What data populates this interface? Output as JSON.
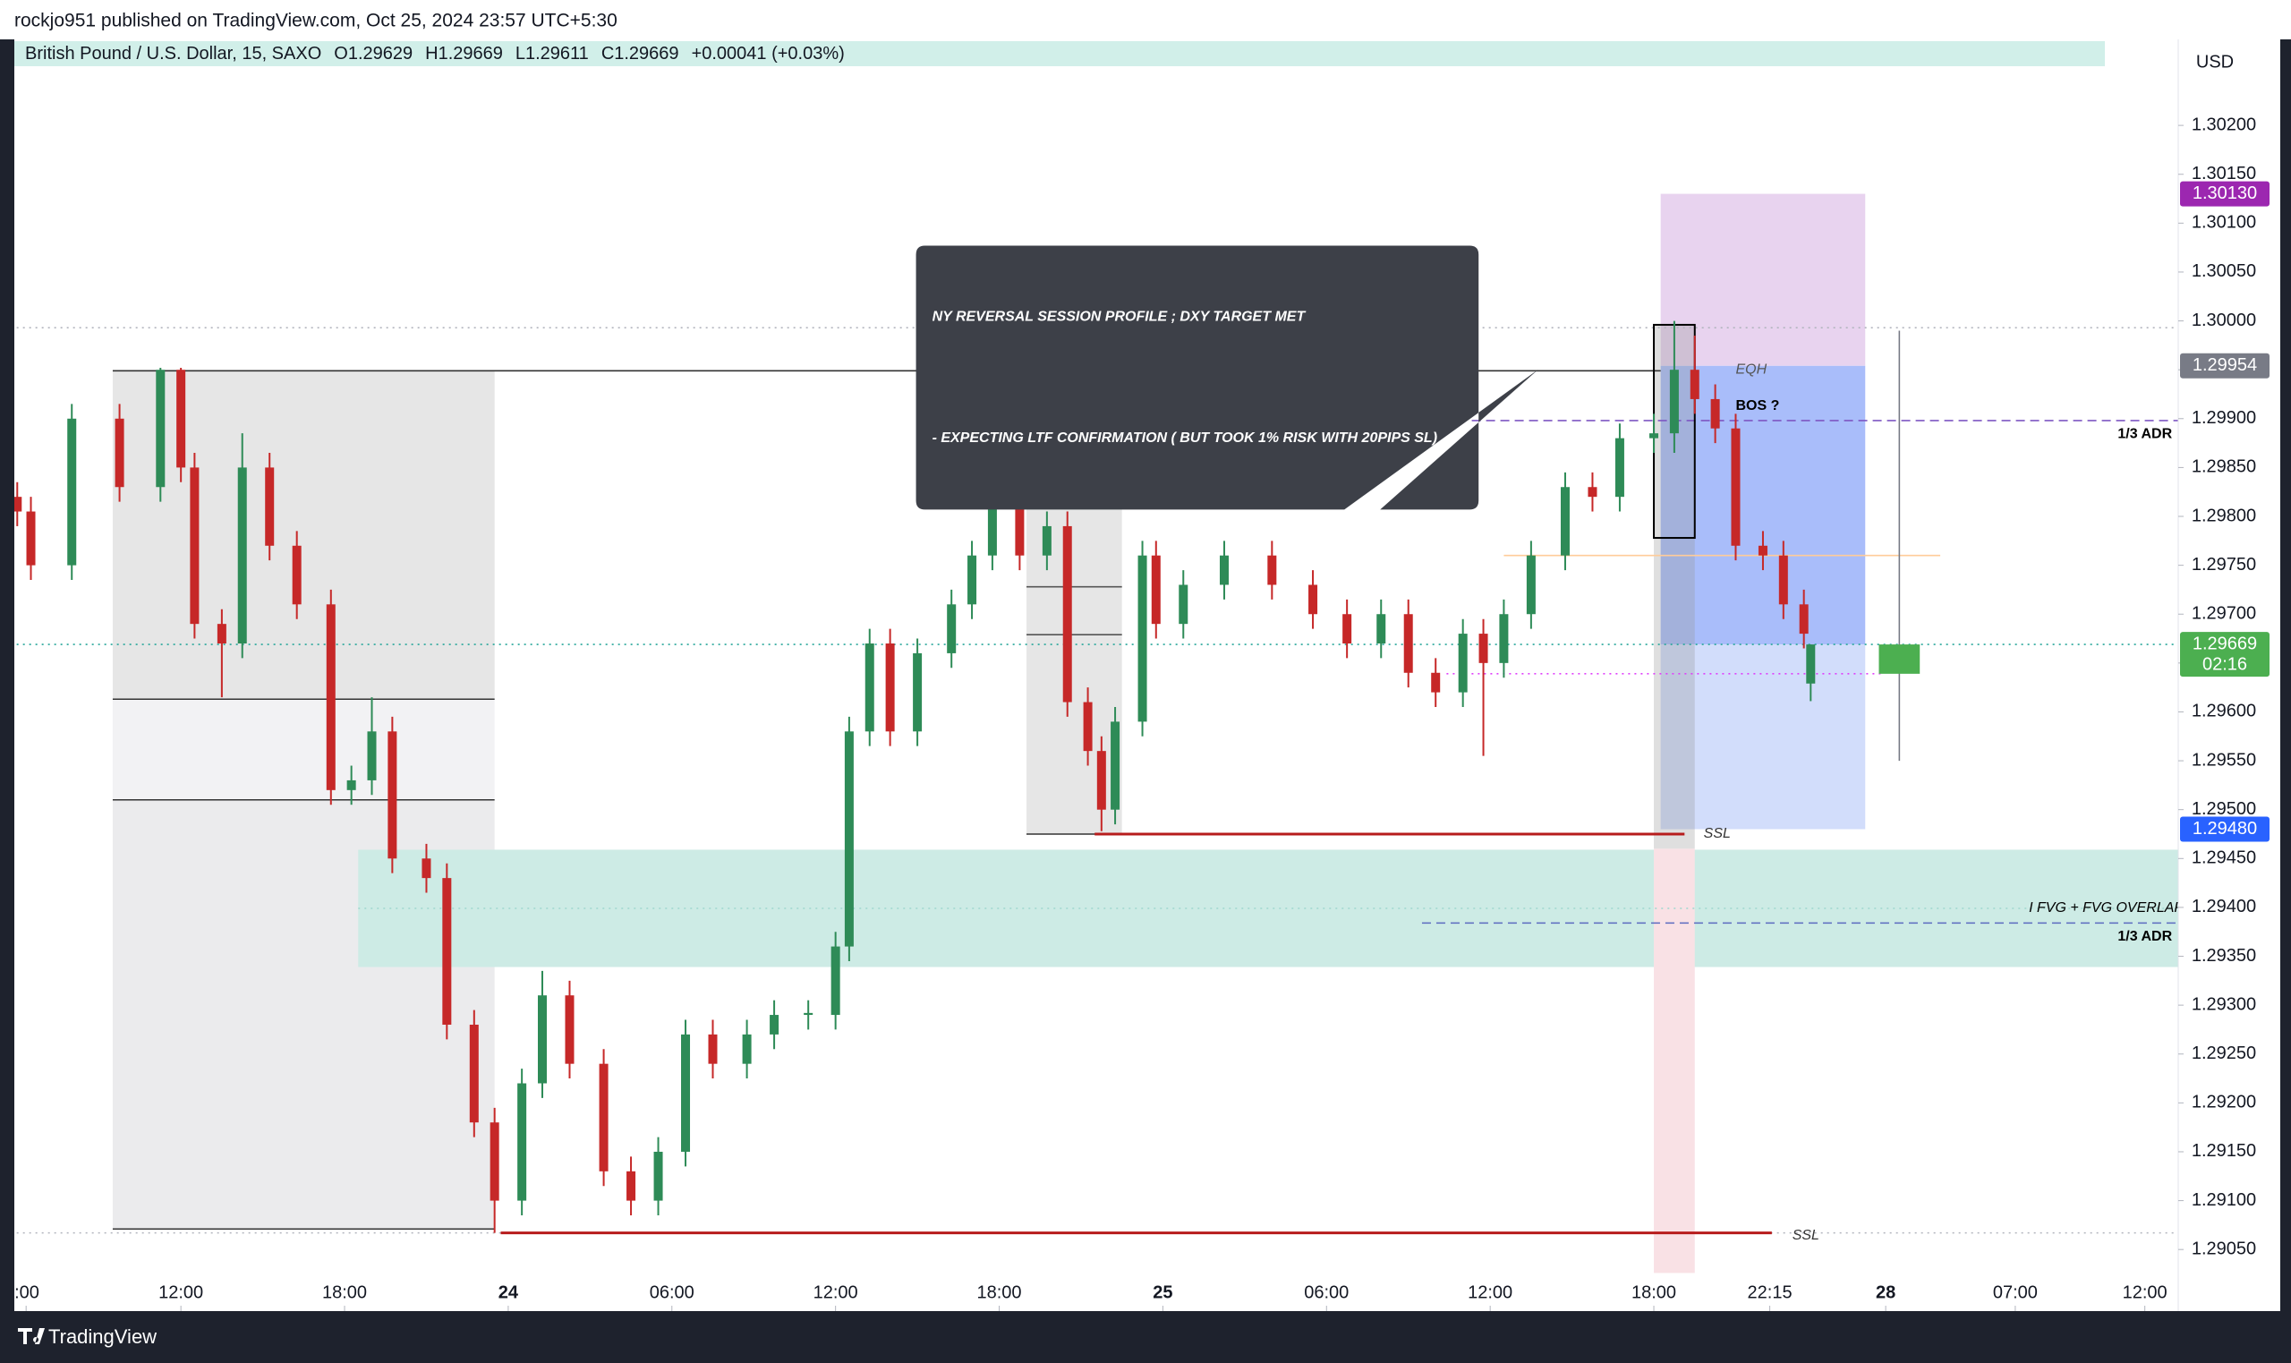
{
  "header": {
    "publisher": "rockjo951 published on TradingView.com, Oct 25, 2024 23:57 UTC+5:30",
    "brand": "TradingView"
  },
  "chart_data": {
    "type": "candlestick",
    "title": "British Pound / U.S. Dollar, 15, SAXO",
    "legend_values": [
      "O1.29629",
      "H1.29669",
      "L1.29611",
      "C1.29669",
      "+0.00041 (+0.03%)"
    ],
    "currency": "USD",
    "up_color": "#2e8b57",
    "down_color": "#c62828",
    "x": [
      -24,
      -22,
      -16,
      -9,
      -3,
      0,
      2,
      6,
      9,
      13,
      17,
      22,
      25,
      28,
      31,
      36,
      39,
      43,
      46,
      50,
      53,
      57,
      62,
      66,
      70,
      74,
      78,
      83,
      87,
      92,
      96,
      98,
      101,
      104,
      108,
      113,
      116,
      119,
      123,
      127,
      130,
      133,
      135,
      137,
      141,
      143,
      147,
      153,
      160,
      166,
      171,
      176,
      180,
      184,
      188,
      191,
      194,
      198,
      203,
      207,
      211,
      216,
      219,
      222,
      225,
      228,
      232,
      235,
      238,
      239
    ],
    "open": [
      1.2982,
      1.29805,
      1.2975,
      1.299,
      1.2983,
      1.2995,
      1.2985,
      1.2969,
      1.2967,
      1.2985,
      1.2977,
      1.2971,
      1.2952,
      1.2953,
      1.2958,
      1.2945,
      1.2943,
      1.2928,
      1.2918,
      1.291,
      1.2922,
      1.2931,
      1.2924,
      1.2913,
      1.291,
      1.2915,
      1.2927,
      1.2924,
      1.2927,
      1.2929,
      1.2929,
      1.2936,
      1.2958,
      1.2967,
      1.2958,
      1.2966,
      1.2971,
      1.2976,
      1.2982,
      1.2976,
      1.2979,
      1.2961,
      1.2956,
      1.295,
      1.2959,
      1.2976,
      1.2969,
      1.2973,
      1.2976,
      1.2973,
      1.297,
      1.2967,
      1.297,
      1.2964,
      1.2962,
      1.2968,
      1.2965,
      1.297,
      1.2976,
      1.2983,
      1.2982,
      1.2988,
      1.29885,
      1.2995,
      1.2992,
      1.2989,
      1.2977,
      1.2976,
      1.2971,
      1.29629
    ],
    "high": [
      1.29835,
      1.2982,
      1.29915,
      1.29915,
      1.29952,
      1.29952,
      1.29865,
      1.29705,
      1.29885,
      1.29865,
      1.29785,
      1.29725,
      1.29545,
      1.29615,
      1.29595,
      1.29465,
      1.29445,
      1.29295,
      1.29195,
      1.29235,
      1.29335,
      1.29325,
      1.29255,
      1.29145,
      1.29165,
      1.29285,
      1.29285,
      1.29285,
      1.29305,
      1.29305,
      1.29375,
      1.29595,
      1.29685,
      1.29685,
      1.29675,
      1.29725,
      1.29775,
      1.29835,
      1.29835,
      1.29805,
      1.29805,
      1.29625,
      1.29575,
      1.29605,
      1.29775,
      1.29775,
      1.29745,
      1.29775,
      1.29775,
      1.29745,
      1.29715,
      1.29715,
      1.29715,
      1.29655,
      1.29695,
      1.29695,
      1.29715,
      1.29775,
      1.29845,
      1.29845,
      1.29895,
      1.29905,
      1.3,
      1.29985,
      1.29935,
      1.29905,
      1.29785,
      1.29775,
      1.29725,
      1.29669
    ],
    "low": [
      1.2979,
      1.29735,
      1.29735,
      1.29815,
      1.29815,
      1.29835,
      1.29675,
      1.29615,
      1.29655,
      1.29755,
      1.29695,
      1.29505,
      1.29505,
      1.29515,
      1.29435,
      1.29415,
      1.29265,
      1.29165,
      1.29067,
      1.29085,
      1.29205,
      1.29225,
      1.29115,
      1.29085,
      1.29085,
      1.29135,
      1.29225,
      1.29225,
      1.29255,
      1.29275,
      1.29275,
      1.29345,
      1.29565,
      1.29565,
      1.29565,
      1.29645,
      1.29695,
      1.29745,
      1.29745,
      1.29745,
      1.29595,
      1.29545,
      1.29478,
      1.29485,
      1.29575,
      1.29675,
      1.29675,
      1.29715,
      1.29715,
      1.29685,
      1.29655,
      1.29655,
      1.29625,
      1.29605,
      1.29605,
      1.29555,
      1.29635,
      1.29685,
      1.29745,
      1.29805,
      1.29805,
      1.29865,
      1.29865,
      1.29905,
      1.29875,
      1.29755,
      1.29745,
      1.29695,
      1.29665,
      1.29611
    ],
    "close": [
      1.29805,
      1.2975,
      1.299,
      1.2983,
      1.2995,
      1.2985,
      1.2969,
      1.2967,
      1.2985,
      1.2977,
      1.2971,
      1.2952,
      1.2953,
      1.2958,
      1.2945,
      1.2943,
      1.2928,
      1.2918,
      1.291,
      1.2922,
      1.2931,
      1.2924,
      1.2913,
      1.291,
      1.2915,
      1.2927,
      1.2924,
      1.2927,
      1.2929,
      1.29292,
      1.2936,
      1.2958,
      1.2967,
      1.2958,
      1.2966,
      1.2971,
      1.2976,
      1.2982,
      1.2976,
      1.2979,
      1.2961,
      1.2956,
      1.295,
      1.2959,
      1.2976,
      1.2969,
      1.2973,
      1.2976,
      1.2973,
      1.297,
      1.2967,
      1.297,
      1.2964,
      1.2962,
      1.2968,
      1.2965,
      1.297,
      1.2976,
      1.2983,
      1.2982,
      1.2988,
      1.29885,
      1.2995,
      1.2992,
      1.2989,
      1.2977,
      1.2976,
      1.2971,
      1.2968,
      1.29669
    ],
    "xlim": [
      -24.43,
      292.9
    ],
    "xticks": [
      {
        "value": -22.7,
        "label": ":00"
      },
      {
        "value": 0,
        "label": "12:00"
      },
      {
        "value": 24,
        "label": "18:00"
      },
      {
        "value": 48,
        "label": "24"
      },
      {
        "value": 72,
        "label": "06:00"
      },
      {
        "value": 96,
        "label": "12:00"
      },
      {
        "value": 120,
        "label": "18:00"
      },
      {
        "value": 144,
        "label": "25"
      },
      {
        "value": 168,
        "label": "06:00"
      },
      {
        "value": 192,
        "label": "12:00"
      },
      {
        "value": 216,
        "label": "18:00"
      },
      {
        "value": 233,
        "label": "22:15"
      },
      {
        "value": 250,
        "label": "28"
      },
      {
        "value": 269,
        "label": "07:00"
      },
      {
        "value": 288,
        "label": "12:00"
      }
    ],
    "ylim": [
      1.28987,
      1.30288
    ],
    "yticks": [
      {
        "value": 1.302,
        "label": "1.30200"
      },
      {
        "value": 1.3015,
        "label": "1.30150"
      },
      {
        "value": 1.301,
        "label": "1.30100"
      },
      {
        "value": 1.3005,
        "label": "1.30050"
      },
      {
        "value": 1.3,
        "label": "1.30000"
      },
      {
        "value": 1.2995,
        "label": "1.29950"
      },
      {
        "value": 1.299,
        "label": "1.29900"
      },
      {
        "value": 1.2985,
        "label": "1.29850"
      },
      {
        "value": 1.298,
        "label": "1.29800"
      },
      {
        "value": 1.2975,
        "label": "1.29750"
      },
      {
        "value": 1.297,
        "label": "1.29700"
      },
      {
        "value": 1.2965,
        "label": "1.29650"
      },
      {
        "value": 1.296,
        "label": "1.29600"
      },
      {
        "value": 1.2955,
        "label": "1.29550"
      },
      {
        "value": 1.295,
        "label": "1.29500"
      },
      {
        "value": 1.2945,
        "label": "1.29450"
      },
      {
        "value": 1.294,
        "label": "1.29400"
      },
      {
        "value": 1.2935,
        "label": "1.29350"
      },
      {
        "value": 1.293,
        "label": "1.29300"
      },
      {
        "value": 1.2925,
        "label": "1.29250"
      },
      {
        "value": 1.292,
        "label": "1.29200"
      },
      {
        "value": 1.2915,
        "label": "1.29150"
      },
      {
        "value": 1.291,
        "label": "1.29100"
      },
      {
        "value": 1.2905,
        "label": "1.29050"
      }
    ],
    "price_labels": [
      {
        "value": 1.3013,
        "label": "1.30130",
        "color": "#9c27b0"
      },
      {
        "value": 1.29954,
        "label": "1.29954",
        "color": "#787b86"
      },
      {
        "value": 1.29669,
        "label": "1.29669",
        "sub": "02:16",
        "color": "#4caf50"
      },
      {
        "value": 1.2948,
        "label": "1.29480",
        "color": "#2962ff"
      }
    ],
    "drawings": [
      {
        "kind": "rect",
        "x": [
          -10,
          46
        ],
        "y": [
          1.29949,
          1.29613
        ],
        "fill": "#e6e6e6"
      },
      {
        "kind": "rect",
        "x": [
          -10,
          46
        ],
        "y": [
          1.29613,
          1.2951
        ],
        "fill": "#f2f2f4"
      },
      {
        "kind": "rect",
        "x": [
          -10,
          46
        ],
        "y": [
          1.2951,
          1.29071
        ],
        "fill": "#ebebed"
      },
      {
        "kind": "rect",
        "x": [
          124,
          138
        ],
        "y": [
          1.29884,
          1.29475
        ],
        "fill": "#e6e6e6"
      },
      {
        "kind": "rect",
        "x": [
          26,
          293
        ],
        "y": [
          1.29459,
          1.29339
        ],
        "fill": "#cdebe5"
      },
      {
        "kind": "rect",
        "x": [
          217,
          247
        ],
        "y": [
          1.3013,
          1.29954
        ],
        "fill": "#e8d3ef"
      },
      {
        "kind": "rect",
        "x": [
          217,
          247
        ],
        "y": [
          1.29954,
          1.29669
        ],
        "fill": "#a9bdfa"
      },
      {
        "kind": "rect",
        "x": [
          217,
          247
        ],
        "y": [
          1.29669,
          1.2948
        ],
        "fill": "#d2ddfb"
      },
      {
        "kind": "rect",
        "x": [
          216,
          222
        ],
        "y": [
          1.29996,
          1.2946
        ],
        "fill": "#9696964d"
      },
      {
        "kind": "rect",
        "x": [
          216,
          222
        ],
        "y": [
          1.2946,
          1.29026
        ],
        "fill": "#f9e1e5"
      },
      {
        "kind": "line",
        "x": [
          -25,
          293
        ],
        "y": [
          1.29993,
          1.29993
        ],
        "color": "#b2b5be",
        "dash": "dotted"
      },
      {
        "kind": "line",
        "x": [
          -25,
          293
        ],
        "y": [
          1.29067,
          1.29067
        ],
        "color": "#b2b5be",
        "dash": "dotted"
      },
      {
        "kind": "line",
        "x": [
          -25,
          293
        ],
        "y": [
          1.29669,
          1.29669
        ],
        "color": "#26a69a",
        "dash": "dotted"
      },
      {
        "kind": "line",
        "x": [
          -10,
          217
        ],
        "y": [
          1.29949,
          1.29949
        ],
        "color": "#333333"
      },
      {
        "kind": "line",
        "x": [
          -10,
          46
        ],
        "y": [
          1.29613,
          1.29613
        ],
        "color": "#333333"
      },
      {
        "kind": "line",
        "x": [
          -10,
          46
        ],
        "y": [
          1.2951,
          1.2951
        ],
        "color": "#333333"
      },
      {
        "kind": "line",
        "x": [
          -10,
          46
        ],
        "y": [
          1.29071,
          1.29071
        ],
        "color": "#333333"
      },
      {
        "kind": "line",
        "x": [
          124,
          138
        ],
        "y": [
          1.29884,
          1.29884
        ],
        "color": "#333333"
      },
      {
        "kind": "line",
        "x": [
          124,
          138
        ],
        "y": [
          1.29475,
          1.29475
        ],
        "color": "#333333"
      },
      {
        "kind": "line",
        "x": [
          124,
          138
        ],
        "y": [
          1.29728,
          1.29728
        ],
        "color": "#555555"
      },
      {
        "kind": "line",
        "x": [
          124,
          138
        ],
        "y": [
          1.29679,
          1.29679
        ],
        "color": "#555555"
      },
      {
        "kind": "line",
        "x": [
          134,
          220.5
        ],
        "y": [
          1.29475,
          1.29475
        ],
        "color": "#b71c1c",
        "width": 3
      },
      {
        "kind": "line",
        "x": [
          46.9,
          233.3
        ],
        "y": [
          1.29067,
          1.29067
        ],
        "color": "#b71c1c",
        "width": 3
      },
      {
        "kind": "line",
        "x": [
          26,
          293
        ],
        "y": [
          1.29399,
          1.29399
        ],
        "color": "#9fd8cf",
        "dash": "dotted"
      },
      {
        "kind": "line",
        "x": [
          183,
          293
        ],
        "y": [
          1.29898,
          1.29898
        ],
        "color": "#7e57c2",
        "dash": "dashed"
      },
      {
        "kind": "line",
        "x": [
          182,
          293
        ],
        "y": [
          1.29384,
          1.29384
        ],
        "color": "#5c6bc0",
        "dash": "dashed"
      },
      {
        "kind": "line",
        "x": [
          194,
          258
        ],
        "y": [
          1.2976,
          1.2976
        ],
        "color": "#ffcc99"
      },
      {
        "kind": "line",
        "x": [
          185.6,
          249.8
        ],
        "y": [
          1.29639,
          1.29639
        ],
        "color": "#e040fb",
        "dash": "dotted"
      },
      {
        "kind": "line",
        "x": [
          252,
          252
        ],
        "y": [
          1.2999,
          1.2955
        ],
        "color": "#787b86"
      },
      {
        "kind": "rect",
        "x": [
          249,
          255
        ],
        "y": [
          1.29669,
          1.29639
        ],
        "fill": "#4caf50"
      },
      {
        "kind": "rect",
        "x": [
          216,
          222
        ],
        "y": [
          1.29996,
          1.29778
        ],
        "fill": "none",
        "stroke": "#000000"
      },
      {
        "kind": "text",
        "x": 228,
        "y": 1.2995,
        "text": "EQH",
        "color": "#555555",
        "style": "italic"
      },
      {
        "kind": "text",
        "x": 228,
        "y": 1.29913,
        "text": "BOS ?",
        "color": "#000000",
        "style": "bold"
      },
      {
        "kind": "text",
        "x": 292,
        "y": 1.29884,
        "text": "1/3 ADR",
        "color": "#000000",
        "style": "bold",
        "anchor": "end"
      },
      {
        "kind": "text",
        "x": 292,
        "y": 1.2937,
        "text": "1/3 ADR",
        "color": "#000000",
        "style": "bold",
        "anchor": "end"
      },
      {
        "kind": "text",
        "x": 271,
        "y": 1.29399,
        "text": "I FVG + FVG OVERLAP",
        "color": "#000000",
        "style": "italic"
      },
      {
        "kind": "text",
        "x": 223.3,
        "y": 1.29475,
        "text": "SSL",
        "color": "#333333",
        "style": "italic"
      },
      {
        "kind": "text",
        "x": 236.3,
        "y": 1.29064,
        "text": "SSL",
        "color": "#333333",
        "style": "italic"
      },
      {
        "kind": "callout",
        "x": [
          107.8,
          190.3
        ],
        "y": [
          1.30077,
          1.29807
        ],
        "tip": [
          199,
          1.2995
        ],
        "lines": [
          "NY REVERSAL SESSION PROFILE  ; DXY TARGET MET",
          "- EXPECTING LTF CONFIRMATION ( BUT TOOK 1% RISK WITH 20PIPS SL)"
        ]
      }
    ]
  }
}
